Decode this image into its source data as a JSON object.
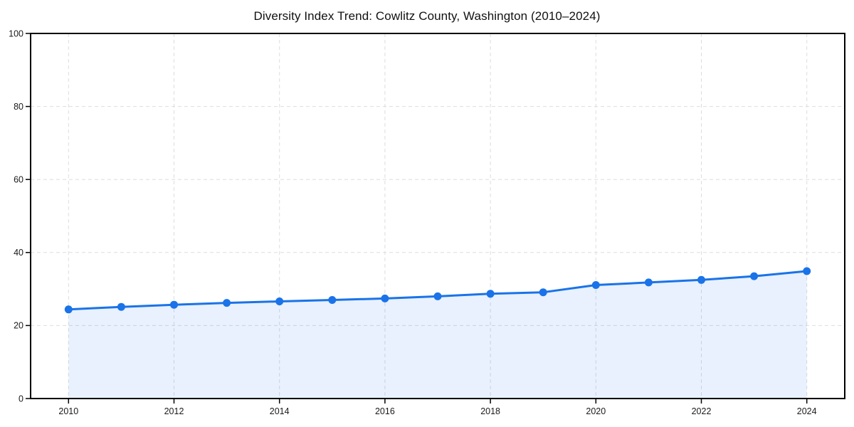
{
  "page": {
    "background": "#ffffff"
  },
  "chart_data": {
    "type": "line",
    "title": "Diversity Index Trend: Cowlitz County, Washington (2010–2024)",
    "xlabel": "",
    "ylabel": "",
    "x": [
      2010,
      2011,
      2012,
      2013,
      2014,
      2015,
      2016,
      2017,
      2018,
      2019,
      2020,
      2021,
      2022,
      2023,
      2024
    ],
    "values": [
      24.4,
      25.1,
      25.7,
      26.2,
      26.6,
      27.0,
      27.4,
      28.0,
      28.7,
      29.1,
      31.1,
      31.8,
      32.5,
      33.5,
      34.9
    ],
    "series_name": "Diversity Index",
    "xlim": [
      2009.28,
      2024.72
    ],
    "ylim": [
      0,
      100
    ],
    "xticks": [
      2010,
      2012,
      2014,
      2016,
      2018,
      2020,
      2022,
      2024
    ],
    "yticks": [
      0,
      20,
      40,
      60,
      80,
      100
    ],
    "grid": "dashed",
    "legend": "none",
    "area_fill": true,
    "markers": true,
    "colors": {
      "line": "#1a73e8",
      "marker": "#1a73e8",
      "fill": "rgba(26,115,232,0.10)",
      "grid": "#dddddd",
      "axis": "#000000",
      "text": "#1a1a1a",
      "background": "#ffffff"
    }
  }
}
